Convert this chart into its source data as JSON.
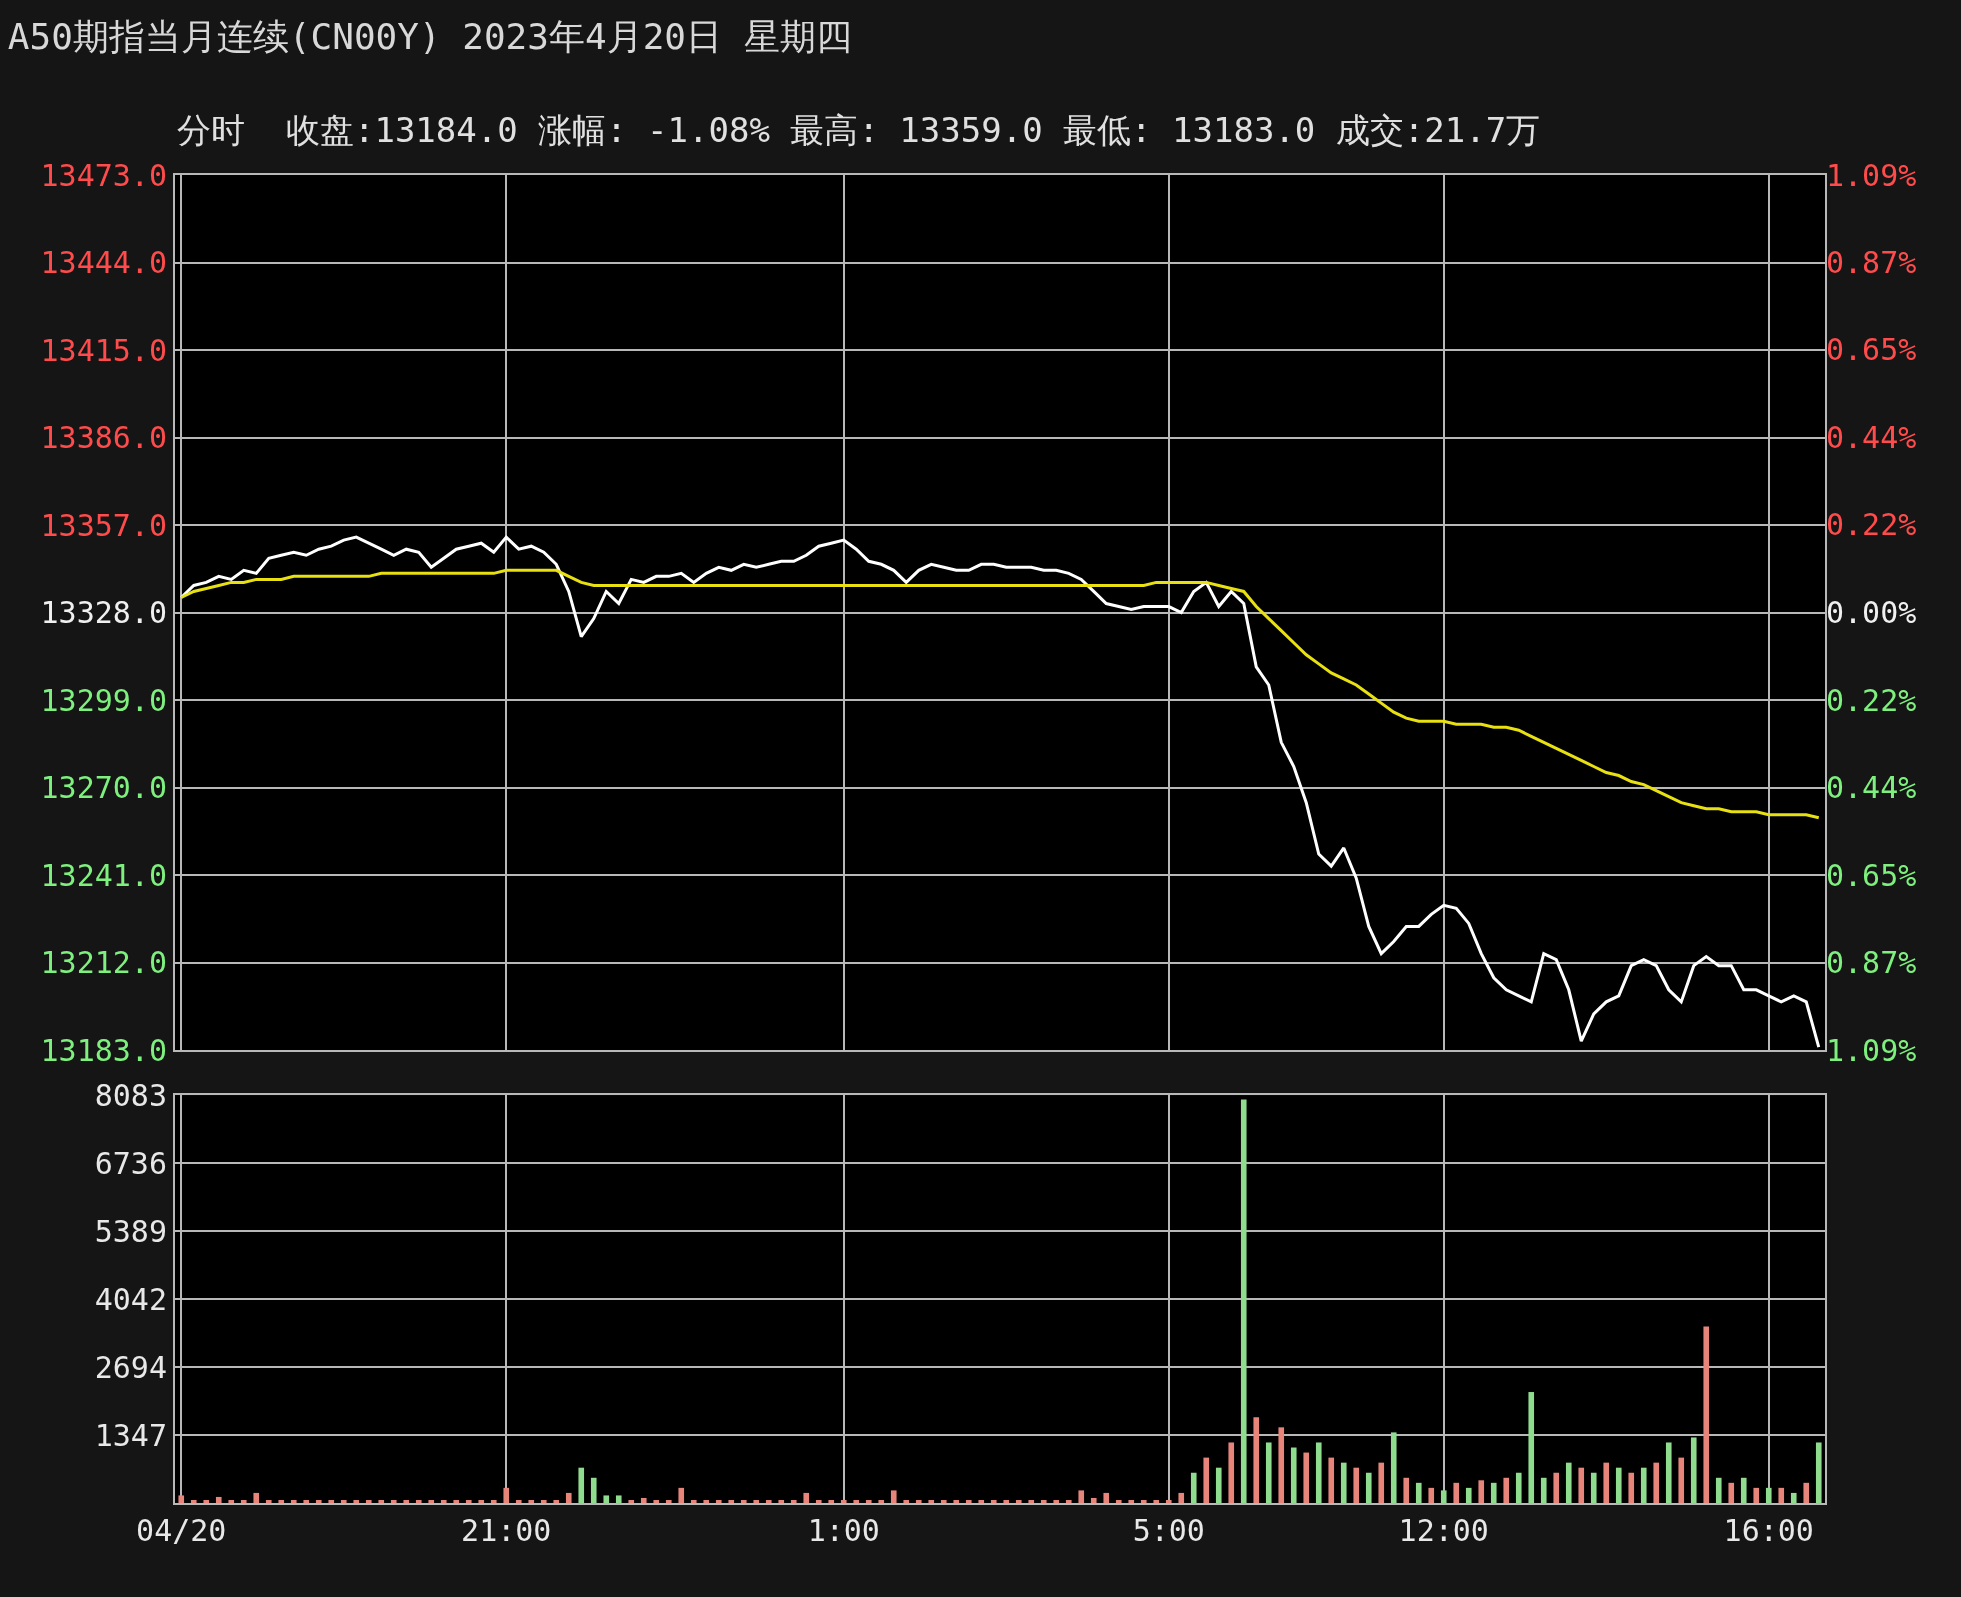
{
  "chart_data": [
    {
      "type": "line",
      "title": "A50期指当月连续(CN00Y) 2023年4月20日 星期四",
      "subtitle": "分时  收盘:13184.0 涨幅: -1.08% 最高: 13359.0 最低: 13183.0 成交:21.7万",
      "categories": [
        null,
        null,
        null,
        null,
        null,
        null,
        null,
        null,
        null,
        null,
        null,
        null,
        null,
        null,
        null,
        null,
        null,
        null,
        null,
        null,
        null,
        null,
        null,
        null,
        null,
        null,
        null,
        null,
        null,
        null,
        null,
        null,
        null,
        null,
        null,
        null,
        null,
        null,
        null,
        null,
        null,
        null,
        null,
        null,
        null,
        null,
        null,
        null,
        null,
        null,
        null,
        null,
        null,
        null,
        null,
        null,
        null,
        null,
        null,
        null,
        null,
        null,
        null,
        null,
        null,
        null,
        null,
        null,
        null,
        null,
        null,
        null,
        null,
        null,
        null,
        null,
        null,
        null,
        null,
        null,
        null,
        null,
        null,
        null,
        null,
        null,
        null,
        null,
        null,
        null,
        null,
        null,
        null,
        null,
        null,
        null,
        null,
        null,
        null,
        null,
        null,
        null,
        null,
        null,
        null,
        null,
        null,
        null,
        null,
        null,
        null,
        null,
        null,
        null,
        null,
        null,
        null,
        null,
        null,
        null,
        null,
        null,
        null,
        null,
        null,
        null,
        null,
        null,
        null,
        null,
        null,
        null
      ],
      "series": [
        {
          "color": "#ffffff",
          "values": [
            13333,
            13337,
            13338,
            13340,
            13339,
            13342,
            13341,
            13346,
            13347,
            13348,
            13347,
            13349,
            13350,
            13352,
            13353,
            13351,
            13349,
            13347,
            13349,
            13348,
            13343,
            13346,
            13349,
            13350,
            13351,
            13348,
            13353,
            13349,
            13350,
            13348,
            13344,
            13335,
            13320,
            13326,
            13335,
            13331,
            13339,
            13338,
            13340,
            13340,
            13341,
            13338,
            13341,
            13343,
            13342,
            13344,
            13343,
            13344,
            13345,
            13345,
            13347,
            13350,
            13351,
            13352,
            13349,
            13345,
            13344,
            13342,
            13338,
            13342,
            13344,
            13343,
            13342,
            13342,
            13344,
            13344,
            13343,
            13343,
            13343,
            13342,
            13342,
            13341,
            13339,
            13335,
            13331,
            13330,
            13329,
            13330,
            13330,
            13330,
            13328,
            13335,
            13338,
            13330,
            13335,
            13331,
            13310,
            13304,
            13285,
            13277,
            13265,
            13248,
            13244,
            13250,
            13240,
            13224,
            13215,
            13219,
            13224,
            13224,
            13228,
            13231,
            13230,
            13225,
            13215,
            13207,
            13203,
            13201,
            13199,
            13215,
            13213,
            13203,
            13186,
            13195,
            13199,
            13201,
            13211,
            13213,
            13211,
            13203,
            13199,
            13211,
            13214,
            13211,
            13211,
            13203,
            13203,
            13201,
            13199,
            13201,
            13199,
            13184
          ]
        },
        {
          "color": "#e8e010",
          "values": [
            13333,
            13335,
            13336,
            13337,
            13338,
            13338,
            13339,
            13339,
            13339,
            13340,
            13340,
            13340,
            13340,
            13340,
            13340,
            13340,
            13341,
            13341,
            13341,
            13341,
            13341,
            13341,
            13341,
            13341,
            13341,
            13341,
            13342,
            13342,
            13342,
            13342,
            13342,
            13340,
            13338,
            13337,
            13337,
            13337,
            13337,
            13337,
            13337,
            13337,
            13337,
            13337,
            13337,
            13337,
            13337,
            13337,
            13337,
            13337,
            13337,
            13337,
            13337,
            13337,
            13337,
            13337,
            13337,
            13337,
            13337,
            13337,
            13337,
            13337,
            13337,
            13337,
            13337,
            13337,
            13337,
            13337,
            13337,
            13337,
            13337,
            13337,
            13337,
            13337,
            13337,
            13337,
            13337,
            13337,
            13337,
            13337,
            13338,
            13338,
            13338,
            13338,
            13338,
            13337,
            13336,
            13335,
            13330,
            13326,
            13322,
            13318,
            13314,
            13311,
            13308,
            13306,
            13304,
            13301,
            13298,
            13295,
            13293,
            13292,
            13292,
            13292,
            13291,
            13291,
            13291,
            13290,
            13290,
            13289,
            13287,
            13285,
            13283,
            13281,
            13279,
            13277,
            13275,
            13274,
            13272,
            13271,
            13269,
            13267,
            13265,
            13264,
            13263,
            13263,
            13262,
            13262,
            13262,
            13261,
            13261,
            13261,
            13261,
            13260
          ]
        }
      ],
      "ylim": [
        13183,
        13473
      ],
      "yticks": [
        {
          "value": 13183,
          "label": "13183.0"
        },
        {
          "value": 13212,
          "label": "13212.0"
        },
        {
          "value": 13241,
          "label": "13241.0"
        },
        {
          "value": 13270,
          "label": "13270.0"
        },
        {
          "value": 13299,
          "label": "13299.0"
        },
        {
          "value": 13328,
          "label": "13328.0"
        },
        {
          "value": 13357,
          "label": "13357.0"
        },
        {
          "value": 13386,
          "label": "13386.0"
        },
        {
          "value": 13415,
          "label": "13415.0"
        },
        {
          "value": 13444,
          "label": "13444.0"
        },
        {
          "value": 13473,
          "label": "13473.0"
        }
      ],
      "y2lim": [
        -1.088,
        1.088
      ],
      "y2ticks": [
        {
          "value": -1.088,
          "label": "1.09%"
        },
        {
          "value": -0.87,
          "label": "0.87%"
        },
        {
          "value": -0.653,
          "label": "0.65%"
        },
        {
          "value": -0.435,
          "label": "0.44%"
        },
        {
          "value": -0.218,
          "label": "0.22%"
        },
        {
          "value": 0,
          "label": "0.00%"
        },
        {
          "value": 0.218,
          "label": "0.22%"
        },
        {
          "value": 0.435,
          "label": "0.44%"
        },
        {
          "value": 0.653,
          "label": "0.65%"
        },
        {
          "value": 0.87,
          "label": "0.87%"
        },
        {
          "value": 1.088,
          "label": "1.09%"
        }
      ],
      "grid": true,
      "tick_labels": "y"
    },
    {
      "type": "bar",
      "categories": [
        "04/20",
        null,
        null,
        null,
        null,
        null,
        null,
        null,
        null,
        null,
        null,
        null,
        null,
        null,
        null,
        null,
        null,
        null,
        null,
        null,
        null,
        null,
        null,
        null,
        null,
        null,
        "21:00",
        null,
        null,
        null,
        null,
        null,
        null,
        null,
        null,
        null,
        null,
        null,
        null,
        null,
        null,
        null,
        null,
        null,
        null,
        null,
        null,
        null,
        null,
        null,
        null,
        null,
        null,
        "1:00",
        null,
        null,
        null,
        null,
        null,
        null,
        null,
        null,
        null,
        null,
        null,
        null,
        null,
        null,
        null,
        null,
        null,
        null,
        null,
        null,
        null,
        null,
        null,
        null,
        null,
        "5:00",
        null,
        null,
        null,
        null,
        null,
        null,
        null,
        null,
        null,
        null,
        null,
        null,
        null,
        null,
        null,
        null,
        null,
        null,
        null,
        null,
        null,
        "12:00",
        null,
        null,
        null,
        null,
        null,
        null,
        null,
        null,
        null,
        null,
        null,
        null,
        null,
        null,
        null,
        null,
        null,
        null,
        null,
        null,
        null,
        null,
        null,
        null,
        null,
        "16:00",
        null,
        null,
        null,
        null
      ],
      "values": [
        150,
        60,
        60,
        120,
        60,
        60,
        200,
        60,
        60,
        60,
        60,
        60,
        60,
        60,
        60,
        60,
        60,
        60,
        60,
        60,
        60,
        60,
        60,
        60,
        60,
        60,
        300,
        60,
        60,
        60,
        60,
        200,
        700,
        500,
        150,
        150,
        60,
        100,
        60,
        60,
        300,
        60,
        60,
        60,
        60,
        60,
        60,
        60,
        60,
        60,
        200,
        60,
        60,
        60,
        60,
        60,
        60,
        250,
        60,
        60,
        60,
        60,
        60,
        60,
        60,
        60,
        60,
        60,
        60,
        60,
        60,
        60,
        250,
        100,
        200,
        60,
        60,
        60,
        60,
        60,
        200,
        600,
        900,
        700,
        1200,
        8000,
        1700,
        1200,
        1500,
        1100,
        1000,
        1200,
        900,
        800,
        700,
        600,
        800,
        1400,
        500,
        400,
        300,
        250,
        400,
        300,
        450,
        400,
        500,
        600,
        2200,
        500,
        600,
        800,
        700,
        600,
        800,
        700,
        600,
        700,
        800,
        1200,
        900,
        1300,
        3500,
        500,
        400,
        500,
        300,
        300,
        300,
        200,
        400,
        1200
      ],
      "colors": [
        "#e8857a",
        "#e8857a",
        "#e8857a",
        "#e8857a",
        "#e8857a",
        "#e8857a",
        "#e8857a",
        "#e8857a",
        "#e8857a",
        "#e8857a",
        "#e8857a",
        "#e8857a",
        "#e8857a",
        "#e8857a",
        "#e8857a",
        "#e8857a",
        "#e8857a",
        "#e8857a",
        "#e8857a",
        "#e8857a",
        "#e8857a",
        "#e8857a",
        "#e8857a",
        "#e8857a",
        "#e8857a",
        "#e8857a",
        "#e8857a",
        "#e8857a",
        "#e8857a",
        "#e8857a",
        "#e8857a",
        "#e8857a",
        "#8fdc8f",
        "#8fdc8f",
        "#8fdc8f",
        "#8fdc8f",
        "#e8857a",
        "#e8857a",
        "#e8857a",
        "#e8857a",
        "#e8857a",
        "#e8857a",
        "#e8857a",
        "#e8857a",
        "#e8857a",
        "#e8857a",
        "#e8857a",
        "#e8857a",
        "#e8857a",
        "#e8857a",
        "#e8857a",
        "#e8857a",
        "#e8857a",
        "#e8857a",
        "#e8857a",
        "#e8857a",
        "#e8857a",
        "#e8857a",
        "#e8857a",
        "#e8857a",
        "#e8857a",
        "#e8857a",
        "#e8857a",
        "#e8857a",
        "#e8857a",
        "#e8857a",
        "#e8857a",
        "#e8857a",
        "#e8857a",
        "#e8857a",
        "#e8857a",
        "#e8857a",
        "#e8857a",
        "#e8857a",
        "#e8857a",
        "#e8857a",
        "#e8857a",
        "#e8857a",
        "#e8857a",
        "#e8857a",
        "#e8857a",
        "#8fdc8f",
        "#e8857a",
        "#8fdc8f",
        "#e8857a",
        "#8fdc8f",
        "#e8857a",
        "#8fdc8f",
        "#e8857a",
        "#8fdc8f",
        "#e8857a",
        "#8fdc8f",
        "#e8857a",
        "#8fdc8f",
        "#e8857a",
        "#8fdc8f",
        "#e8857a",
        "#8fdc8f",
        "#e8857a",
        "#8fdc8f",
        "#e8857a",
        "#8fdc8f",
        "#e8857a",
        "#8fdc8f",
        "#e8857a",
        "#8fdc8f",
        "#e8857a",
        "#8fdc8f",
        "#8fdc8f",
        "#8fdc8f",
        "#e8857a",
        "#8fdc8f",
        "#e8857a",
        "#8fdc8f",
        "#e8857a",
        "#8fdc8f",
        "#e8857a",
        "#8fdc8f",
        "#e8857a",
        "#8fdc8f",
        "#e8857a",
        "#8fdc8f",
        "#e8857a",
        "#8fdc8f",
        "#e8857a",
        "#8fdc8f",
        "#e8857a",
        "#8fdc8f",
        "#e8857a",
        "#8fdc8f",
        "#e8857a",
        "#8fdc8f"
      ],
      "ylim": [
        0,
        8083
      ],
      "yticks": [
        1347,
        2694,
        4042,
        5389,
        6736,
        8083
      ],
      "grid": true
    }
  ]
}
